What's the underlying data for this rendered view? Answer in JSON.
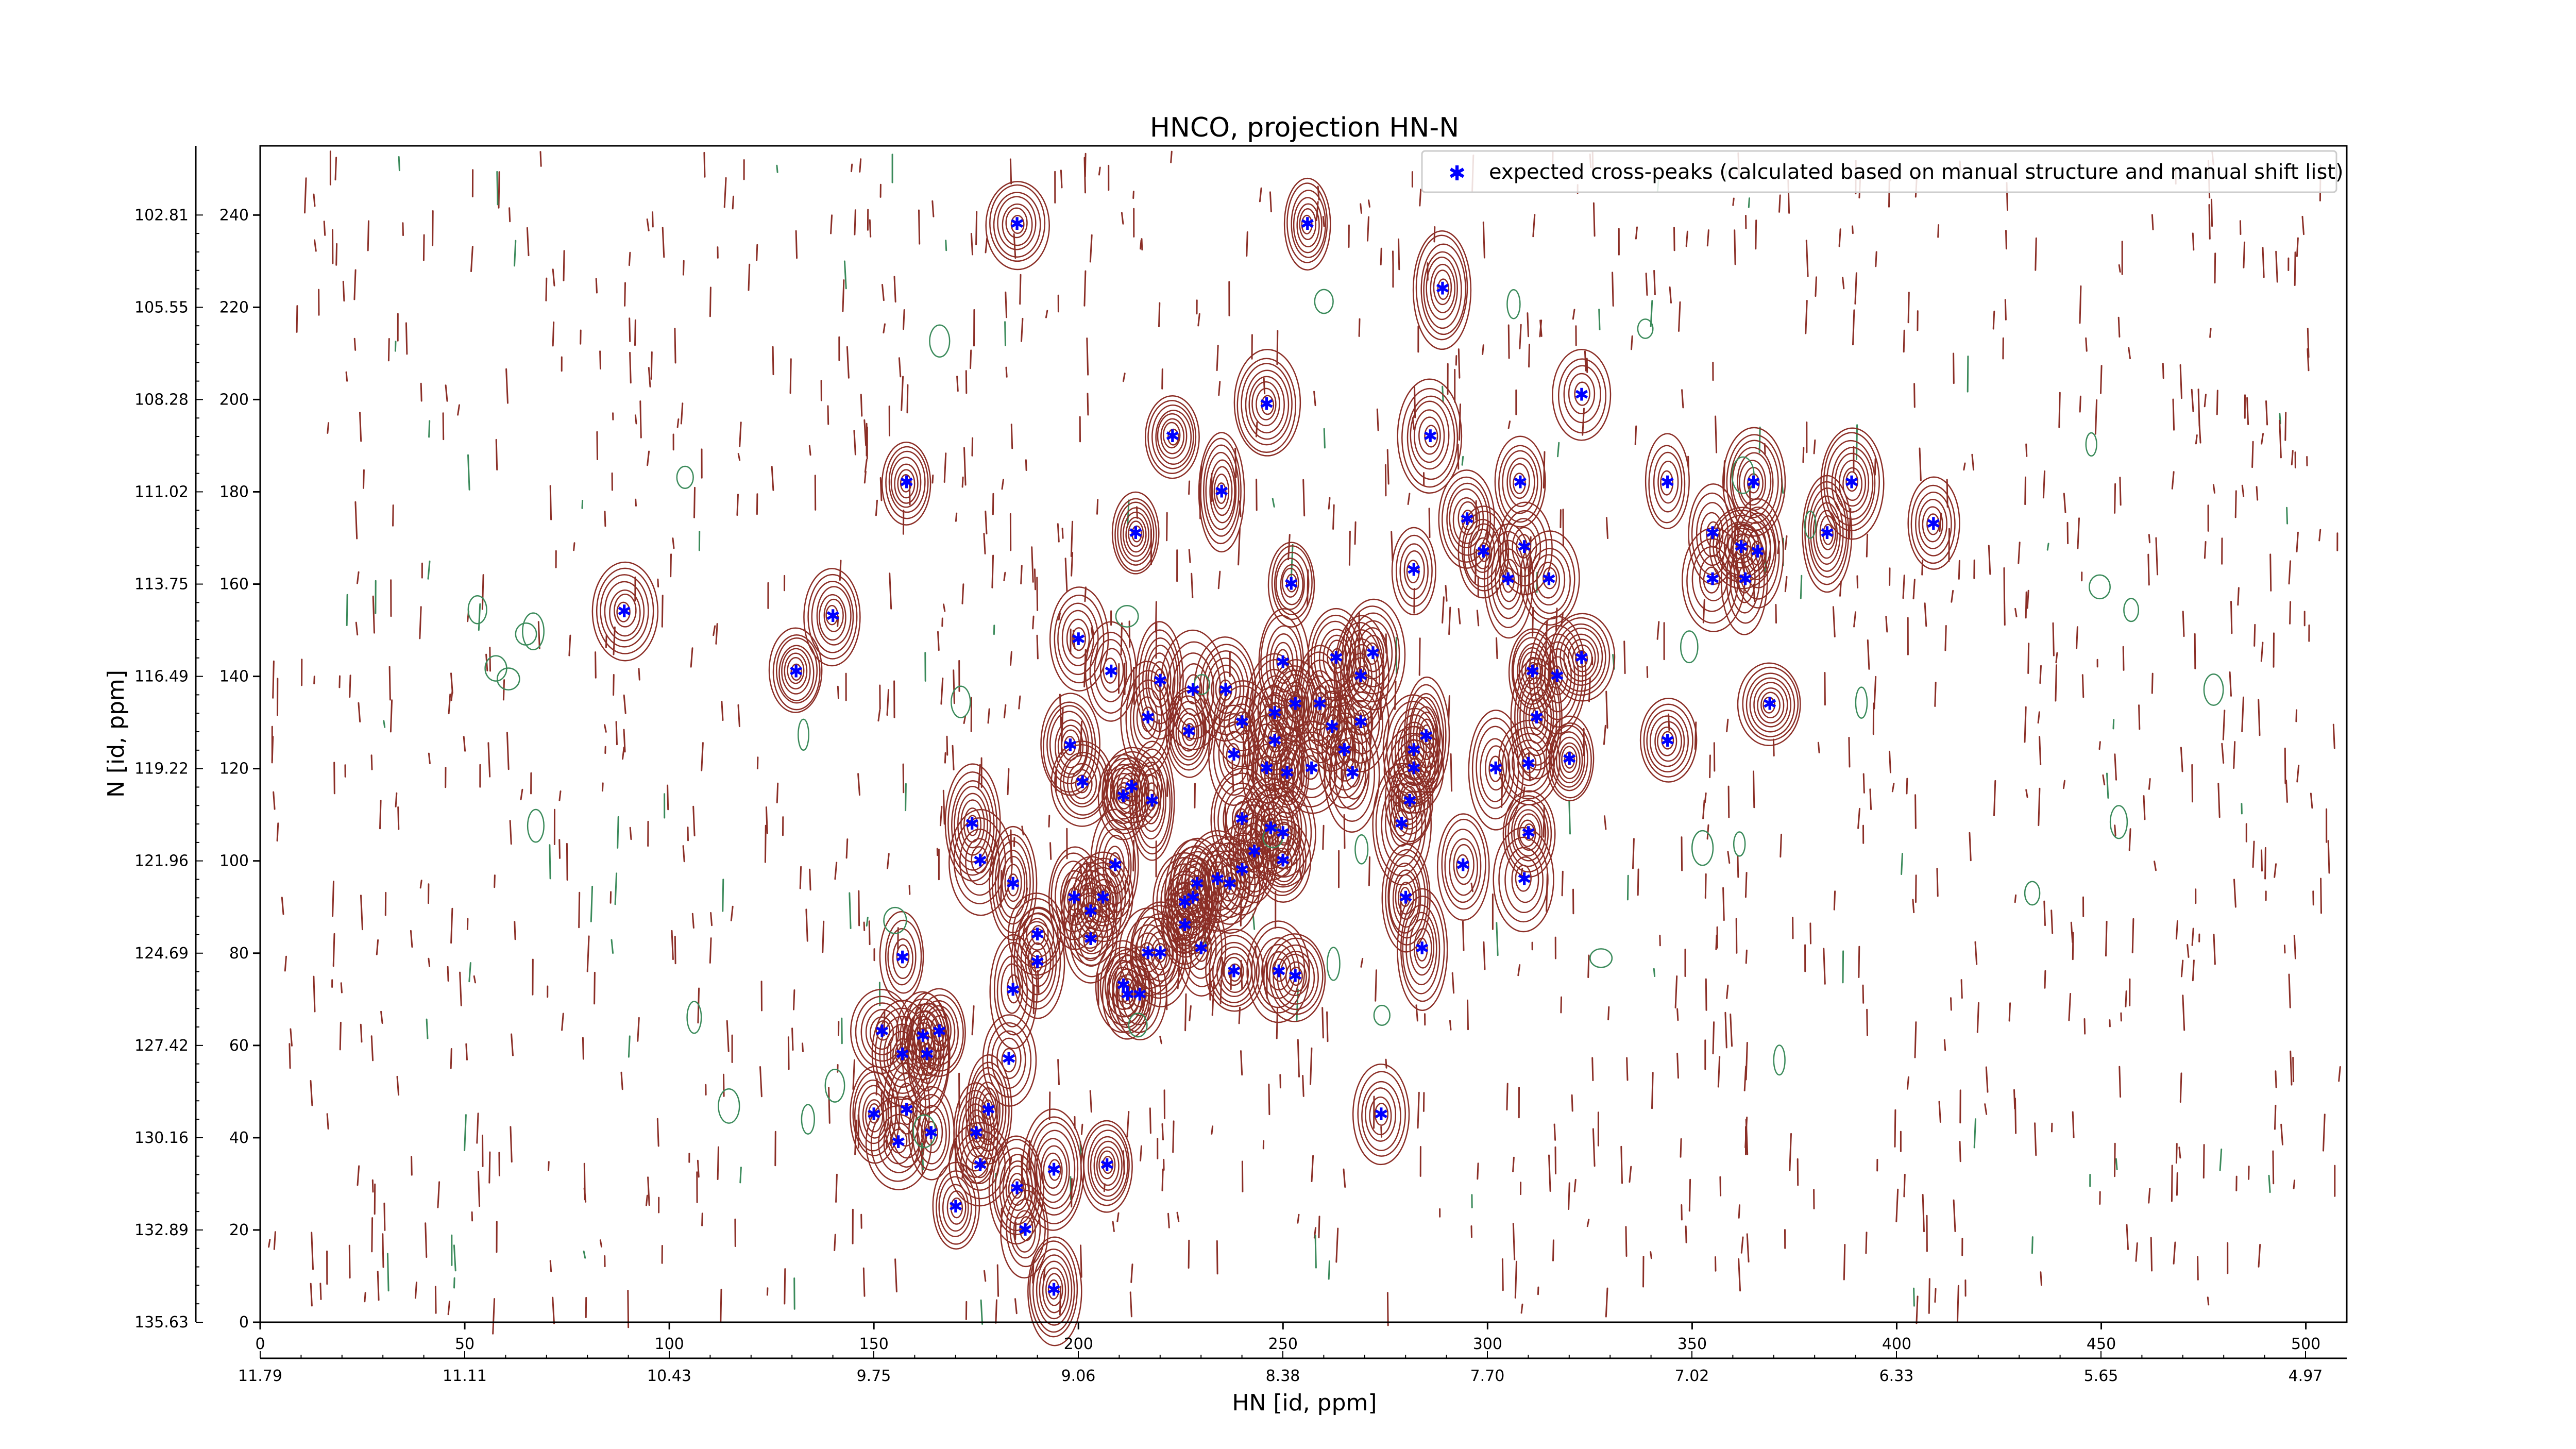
{
  "chart_data": {
    "type": "scatter",
    "title": "HNCO, projection HN-N",
    "xlabel": "HN [id, ppm]",
    "ylabel": "N [id, ppm]",
    "xlim": [
      0,
      510
    ],
    "ylim": [
      0,
      255
    ],
    "x_index_ticks": [
      "0",
      "50",
      "100",
      "150",
      "200",
      "250",
      "300",
      "350",
      "400",
      "450",
      "500"
    ],
    "x_ppm_ticks": [
      "11.79",
      "11.11",
      "10.43",
      "9.75",
      "9.06",
      "8.38",
      "7.70",
      "7.02",
      "6.33",
      "5.65",
      "4.97"
    ],
    "y_index_ticks": [
      "0",
      "20",
      "40",
      "60",
      "80",
      "100",
      "120",
      "140",
      "160",
      "180",
      "200",
      "220",
      "240"
    ],
    "y_ppm_ticks": [
      "135.63",
      "132.89",
      "130.16",
      "127.42",
      "124.69",
      "121.96",
      "119.22",
      "116.49",
      "113.75",
      "111.02",
      "108.28",
      "105.55",
      "102.81"
    ],
    "legend": {
      "position": "upper-right",
      "marker_color": "#0000ff",
      "label": "expected cross-peaks (calculated based on manual structure and manual shift list)"
    },
    "contour_colors": {
      "positive": "#8b2e26",
      "negative": "#3a8a5a"
    },
    "series": [
      {
        "name": "expected cross-peaks (calculated based on manual structure and manual shift list)",
        "points": [
          [
            185,
            238
          ],
          [
            256,
            238
          ],
          [
            289,
            224
          ],
          [
            246,
            199
          ],
          [
            223,
            192
          ],
          [
            323,
            201
          ],
          [
            286,
            192
          ],
          [
            158,
            182
          ],
          [
            235,
            180
          ],
          [
            214,
            171
          ],
          [
            344,
            182
          ],
          [
            389,
            182
          ],
          [
            365,
            182
          ],
          [
            409,
            173
          ],
          [
            383,
            171
          ],
          [
            295,
            174
          ],
          [
            308,
            182
          ],
          [
            299,
            167
          ],
          [
            282,
            163
          ],
          [
            252,
            160
          ],
          [
            309,
            168
          ],
          [
            305,
            161
          ],
          [
            315,
            161
          ],
          [
            355,
            171
          ],
          [
            362,
            168
          ],
          [
            366,
            167
          ],
          [
            355,
            161
          ],
          [
            363,
            161
          ],
          [
            89,
            154
          ],
          [
            140,
            153
          ],
          [
            131,
            141
          ],
          [
            200,
            148
          ],
          [
            208,
            141
          ],
          [
            220,
            139
          ],
          [
            228,
            137
          ],
          [
            236,
            137
          ],
          [
            250,
            143
          ],
          [
            263,
            144
          ],
          [
            269,
            140
          ],
          [
            272,
            145
          ],
          [
            240,
            130
          ],
          [
            217,
            131
          ],
          [
            248,
            132
          ],
          [
            253,
            134
          ],
          [
            259,
            134
          ],
          [
            262,
            129
          ],
          [
            248,
            126
          ],
          [
            265,
            124
          ],
          [
            227,
            128
          ],
          [
            238,
            123
          ],
          [
            246,
            120
          ],
          [
            251,
            119
          ],
          [
            257,
            120
          ],
          [
            267,
            119
          ],
          [
            269,
            130
          ],
          [
            282,
            124
          ],
          [
            282,
            120
          ],
          [
            285,
            127
          ],
          [
            317,
            140
          ],
          [
            323,
            144
          ],
          [
            311,
            141
          ],
          [
            312,
            131
          ],
          [
            302,
            120
          ],
          [
            310,
            121
          ],
          [
            320,
            122
          ],
          [
            344,
            126
          ],
          [
            369,
            134
          ],
          [
            198,
            125
          ],
          [
            201,
            117
          ],
          [
            211,
            114
          ],
          [
            213,
            116
          ],
          [
            218,
            113
          ],
          [
            174,
            108
          ],
          [
            176,
            100
          ],
          [
            184,
            95
          ],
          [
            240,
            109
          ],
          [
            247,
            107
          ],
          [
            250,
            106
          ],
          [
            250,
            100
          ],
          [
            243,
            102
          ],
          [
            240,
            98
          ],
          [
            237,
            95
          ],
          [
            234,
            96
          ],
          [
            229,
            95
          ],
          [
            228,
            92
          ],
          [
            226,
            86
          ],
          [
            226,
            91
          ],
          [
            209,
            99
          ],
          [
            206,
            92
          ],
          [
            199,
            92
          ],
          [
            203,
            89
          ],
          [
            203,
            83
          ],
          [
            220,
            80
          ],
          [
            230,
            81
          ],
          [
            238,
            76
          ],
          [
            249,
            76
          ],
          [
            253,
            75
          ],
          [
            279,
            108
          ],
          [
            281,
            113
          ],
          [
            280,
            92
          ],
          [
            284,
            81
          ],
          [
            294,
            99
          ],
          [
            310,
            106
          ],
          [
            309,
            96
          ],
          [
            157,
            79
          ],
          [
            152,
            63
          ],
          [
            157,
            58
          ],
          [
            162,
            62
          ],
          [
            163,
            58
          ],
          [
            166,
            63
          ],
          [
            184,
            72
          ],
          [
            190,
            84
          ],
          [
            190,
            78
          ],
          [
            211,
            73
          ],
          [
            212,
            71
          ],
          [
            215,
            71
          ],
          [
            217,
            80
          ],
          [
            183,
            57
          ],
          [
            178,
            46
          ],
          [
            158,
            46
          ],
          [
            150,
            45
          ],
          [
            156,
            39
          ],
          [
            164,
            41
          ],
          [
            175,
            41
          ],
          [
            176,
            34
          ],
          [
            194,
            33
          ],
          [
            207,
            34
          ],
          [
            170,
            25
          ],
          [
            185,
            29
          ],
          [
            187,
            20
          ],
          [
            194,
            7
          ],
          [
            274,
            45
          ]
        ]
      }
    ]
  }
}
